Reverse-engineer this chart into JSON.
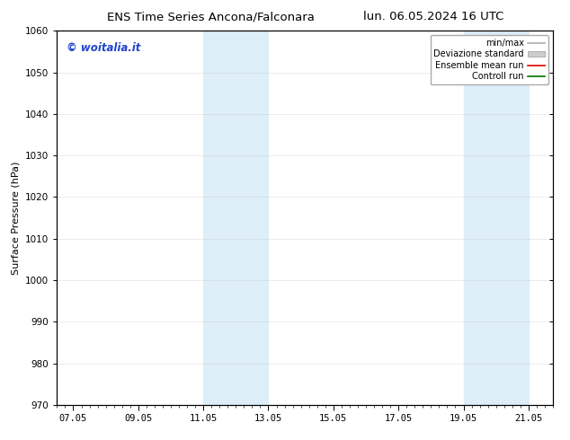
{
  "title_left": "ENS Time Series Ancona/Falconara",
  "title_right": "lun. 06.05.2024 16 UTC",
  "ylabel": "Surface Pressure (hPa)",
  "watermark": "© woitalia.it",
  "ylim": [
    970,
    1060
  ],
  "yticks": [
    970,
    980,
    990,
    1000,
    1010,
    1020,
    1030,
    1040,
    1050,
    1060
  ],
  "xtick_labels": [
    "07.05",
    "09.05",
    "11.05",
    "13.05",
    "15.05",
    "17.05",
    "19.05",
    "21.05"
  ],
  "xtick_positions": [
    0,
    2,
    4,
    6,
    8,
    10,
    12,
    14
  ],
  "xlim": [
    -0.5,
    14.5
  ],
  "shaded_regions": [
    {
      "xstart": 4.0,
      "xend": 6.0,
      "color": "#ddeef8"
    },
    {
      "xstart": 12.0,
      "xend": 14.0,
      "color": "#ddeef8"
    }
  ],
  "legend_entries": [
    {
      "label": "min/max",
      "color": "#aaaaaa",
      "lw": 1.2,
      "linestyle": "-"
    },
    {
      "label": "Deviazione standard",
      "color": "#cccccc",
      "lw": 5,
      "linestyle": "-"
    },
    {
      "label": "Ensemble mean run",
      "color": "#dd0000",
      "lw": 1.2,
      "linestyle": "-"
    },
    {
      "label": "Controll run",
      "color": "#007700",
      "lw": 1.2,
      "linestyle": "-"
    }
  ],
  "background_color": "#ffffff",
  "plot_bg_color": "#ffffff",
  "title_fontsize": 9.5,
  "axis_fontsize": 8,
  "tick_fontsize": 7.5,
  "watermark_color": "#2244cc",
  "watermark_fontsize": 8.5,
  "grid_color": "#bbbbbb",
  "grid_alpha": 0.4,
  "legend_fontsize": 7.0
}
